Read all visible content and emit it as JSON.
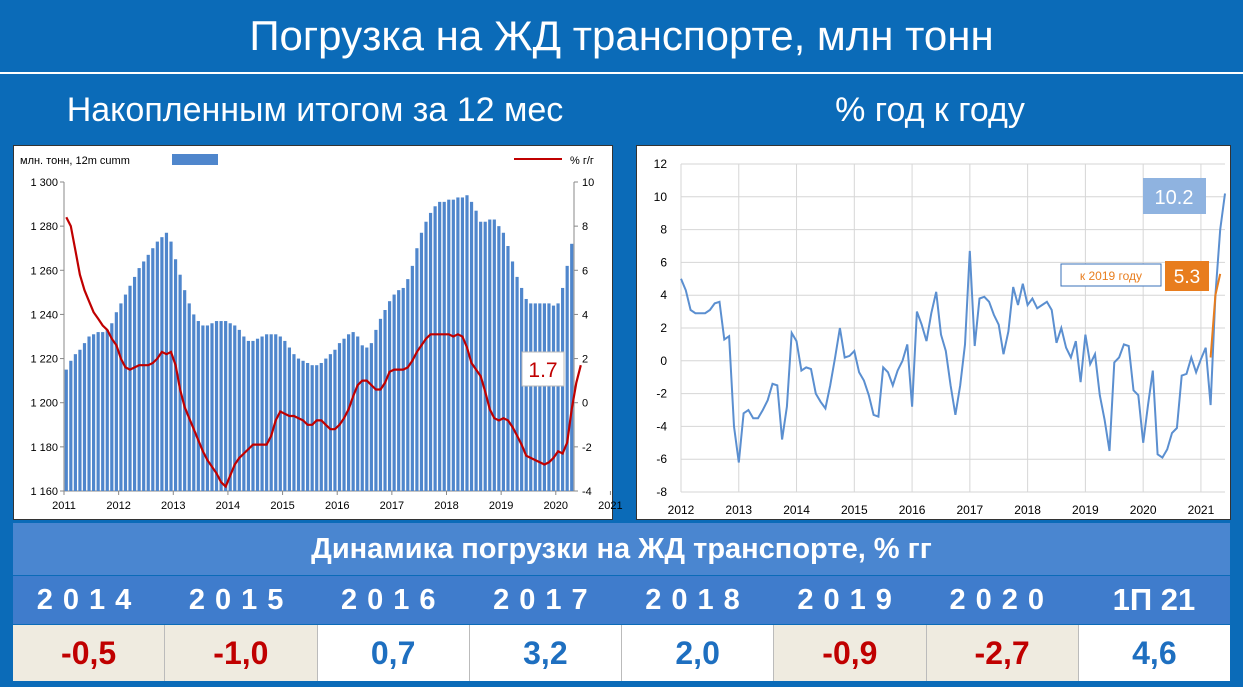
{
  "title": "Погрузка на ЖД транспорте, млн тонн",
  "left_subtitle": "Накопленным итогом за 12 мес",
  "right_subtitle": "% год к году",
  "bottom_title": "Динамика погрузки на ЖД транспорте, % гг",
  "table": {
    "headers": [
      "2014",
      "2015",
      "2016",
      "2017",
      "2018",
      "2019",
      "2020",
      "1П 21"
    ],
    "values": [
      "-0,5",
      "-1,0",
      "0,7",
      "3,2",
      "2,0",
      "-0,9",
      "-2,7",
      "4,6"
    ],
    "negative": [
      true,
      true,
      false,
      false,
      false,
      true,
      true,
      false
    ]
  },
  "colors": {
    "bar": "#4f86cc",
    "red_line": "#c00000",
    "blue_line": "#5b8fd0",
    "orange": "#e87d1e",
    "badge_blue": "#8fb3e0"
  },
  "chart_data": [
    {
      "type": "bar",
      "legend_bar": "млн. тонн, 12m cumm",
      "legend_line": "% г/г",
      "x_ticks": [
        "2011",
        "2012",
        "2013",
        "2014",
        "2015",
        "2016",
        "2017",
        "2018",
        "2019",
        "2020",
        "2021"
      ],
      "y_left_ticks": [
        "1 300",
        "1 280",
        "1 260",
        "1 240",
        "1 220",
        "1 200",
        "1 180",
        "1 160"
      ],
      "y_right_ticks": [
        "10",
        "8",
        "6",
        "4",
        "2",
        "0",
        "-2",
        "-4"
      ],
      "y_left_range": [
        1160,
        1300
      ],
      "y_right_range": [
        -4,
        10
      ],
      "bars_12m_cumm": [
        1215,
        1219,
        1222,
        1224,
        1227,
        1230,
        1231,
        1232,
        1232,
        1233,
        1236,
        1241,
        1245,
        1249,
        1253,
        1257,
        1261,
        1264,
        1267,
        1270,
        1273,
        1275,
        1277,
        1273,
        1265,
        1258,
        1251,
        1245,
        1240,
        1237,
        1235,
        1235,
        1236,
        1237,
        1237,
        1237,
        1236,
        1235,
        1233,
        1230,
        1228,
        1228,
        1229,
        1230,
        1231,
        1231,
        1231,
        1230,
        1228,
        1225,
        1222,
        1220,
        1219,
        1218,
        1217,
        1217,
        1218,
        1220,
        1222,
        1224,
        1227,
        1229,
        1231,
        1232,
        1230,
        1226,
        1225,
        1227,
        1233,
        1238,
        1242,
        1246,
        1249,
        1251,
        1252,
        1256,
        1262,
        1270,
        1277,
        1282,
        1286,
        1289,
        1291,
        1291,
        1292,
        1292,
        1293,
        1293,
        1294,
        1291,
        1287,
        1282,
        1282,
        1283,
        1283,
        1280,
        1277,
        1271,
        1264,
        1257,
        1252,
        1247,
        1245,
        1245,
        1245,
        1245,
        1245,
        1244,
        1245,
        1252,
        1262,
        1272
      ],
      "line_pct_yoy": [
        8.4,
        8.0,
        6.9,
        5.8,
        5.1,
        4.6,
        4.1,
        3.8,
        3.5,
        3.3,
        2.9,
        2.6,
        2.0,
        1.6,
        1.5,
        1.6,
        1.7,
        1.7,
        1.7,
        1.8,
        2.0,
        2.3,
        2.2,
        2.3,
        1.7,
        0.6,
        -0.2,
        -0.7,
        -1.2,
        -1.7,
        -2.2,
        -2.6,
        -2.9,
        -3.2,
        -3.6,
        -3.8,
        -3.3,
        -2.8,
        -2.5,
        -2.3,
        -2.1,
        -1.9,
        -1.9,
        -1.9,
        -1.9,
        -1.5,
        -0.8,
        -0.4,
        -0.5,
        -0.6,
        -0.6,
        -0.7,
        -0.8,
        -1.0,
        -1.0,
        -0.8,
        -0.8,
        -1.0,
        -1.2,
        -1.2,
        -1.0,
        -0.7,
        -0.3,
        0.3,
        0.8,
        1.0,
        1.0,
        0.8,
        0.6,
        0.6,
        0.9,
        1.4,
        1.5,
        1.5,
        1.5,
        1.6,
        1.9,
        2.3,
        2.6,
        2.9,
        3.1,
        3.1,
        3.1,
        3.1,
        3.1,
        3.0,
        3.1,
        3.0,
        2.5,
        1.8,
        1.5,
        1.2,
        0.5,
        -0.3,
        -0.7,
        -0.8,
        -0.7,
        -0.8,
        -1.1,
        -1.5,
        -1.9,
        -2.4,
        -2.5,
        -2.6,
        -2.7,
        -2.8,
        -2.7,
        -2.5,
        -2.2,
        -2.3,
        -1.8,
        -0.3,
        0.9,
        1.7
      ],
      "last_value_label": "1.7"
    },
    {
      "type": "line",
      "x_ticks": [
        "2012",
        "2013",
        "2014",
        "2015",
        "2016",
        "2017",
        "2018",
        "2019",
        "2020",
        "2021"
      ],
      "y_ticks": [
        "12",
        "10",
        "8",
        "6",
        "4",
        "2",
        "0",
        "-2",
        "-4",
        "-6",
        "-8"
      ],
      "y_range": [
        -8,
        12
      ],
      "series": [
        {
          "values": [
            5.0,
            4.3,
            3.1,
            2.9,
            2.9,
            2.9,
            3.1,
            3.5,
            3.6,
            1.3,
            1.5,
            -4.0,
            -6.2,
            -3.2,
            -3.0,
            -3.5,
            -3.5,
            -3.0,
            -2.4,
            -1.4,
            -1.5,
            -4.8,
            -2.8,
            1.7,
            1.2,
            -0.6,
            -0.4,
            -0.5,
            -2.0,
            -2.5,
            -2.9,
            -1.5,
            0.2,
            2.0,
            0.2,
            0.3,
            0.6,
            -0.7,
            -1.2,
            -2.1,
            -3.3,
            -3.4,
            -0.4,
            -0.7,
            -1.5,
            -0.6,
            0.0,
            1.0,
            -2.8,
            3.0,
            2.2,
            1.2,
            2.9,
            4.2,
            1.6,
            0.6,
            -1.5,
            -3.3,
            -1.5,
            1.0,
            6.7,
            0.9,
            3.8,
            3.9,
            3.6,
            2.8,
            2.2,
            0.4,
            1.8,
            4.5,
            3.4,
            4.7,
            3.4,
            3.8,
            3.2,
            3.4,
            3.6,
            3.1,
            1.1,
            2.0,
            0.8,
            0.2,
            1.2,
            -1.3,
            1.6,
            -0.2,
            0.4,
            -2.1,
            -3.6,
            -5.5,
            -0.1,
            0.2,
            1.0,
            0.9,
            -1.8,
            -2.1,
            -5.0,
            -2.7,
            -0.6,
            -5.7,
            -5.9,
            -5.4,
            -4.4,
            -4.1,
            -0.9,
            -0.8,
            0.2,
            -0.7,
            0.1,
            0.8,
            -2.7,
            4.0,
            8.0,
            10.2
          ]
        },
        {
          "name": "к 2019 году",
          "start_index": 110,
          "values": [
            0.2,
            4.0,
            5.3
          ]
        }
      ],
      "label_main": "10.2",
      "label_vs2019": "5.3"
    }
  ]
}
